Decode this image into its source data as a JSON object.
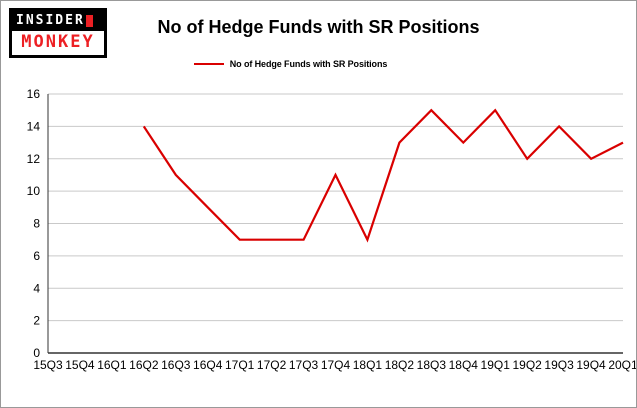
{
  "logo": {
    "top": "INSIDER",
    "bottom": "MONKEY"
  },
  "header": {
    "title": "No of Hedge Funds with SR Positions"
  },
  "legend": {
    "label": "No of Hedge Funds with SR Positions"
  },
  "colors": {
    "series_red": "#d90000",
    "logo_red": "#ed2024",
    "grid": "#c9c9c9",
    "axis": "#333333",
    "page_border": "#999999"
  },
  "chart_data": {
    "type": "line",
    "title": "No of Hedge Funds with SR Positions",
    "categories": [
      "15Q3",
      "15Q4",
      "16Q1",
      "16Q2",
      "16Q3",
      "16Q4",
      "17Q1",
      "17Q2",
      "17Q3",
      "17Q4",
      "18Q1",
      "18Q2",
      "18Q3",
      "18Q4",
      "19Q1",
      "19Q2",
      "19Q3",
      "19Q4",
      "20Q1"
    ],
    "series": [
      {
        "name": "No of Hedge Funds with SR Positions",
        "color": "#d90000",
        "values": [
          null,
          null,
          null,
          14,
          11,
          9,
          7,
          7,
          7,
          11,
          7,
          13,
          15,
          13,
          15,
          12,
          14,
          12,
          13
        ]
      }
    ],
    "ylim": [
      0,
      16
    ],
    "yticks": [
      0,
      2,
      4,
      6,
      8,
      10,
      12,
      14,
      16
    ],
    "grid": true,
    "legend_position": "top-center"
  }
}
